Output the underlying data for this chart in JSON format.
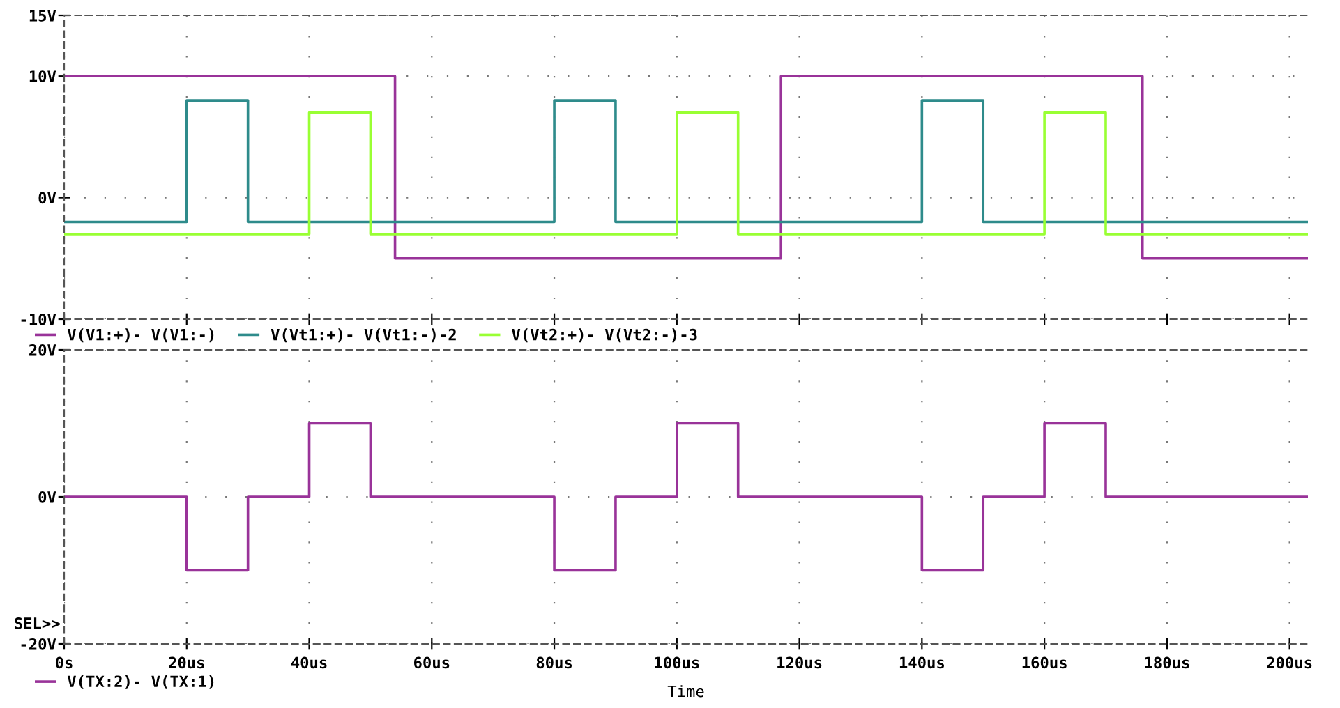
{
  "chart_data": [
    {
      "type": "step",
      "xlim": [
        0,
        203
      ],
      "xticks": [
        0,
        20,
        40,
        60,
        80,
        100,
        120,
        140,
        160,
        180,
        200
      ],
      "ylim": [
        -10,
        15
      ],
      "yticks": [
        {
          "value": -10,
          "label": "-10V"
        },
        {
          "value": 0,
          "label": "0V"
        },
        {
          "value": 10,
          "label": "10V"
        },
        {
          "value": 15,
          "label": "15V"
        }
      ],
      "tick_labels": "y",
      "grid": true,
      "legend": "bottom left",
      "series": [
        {
          "name": "V(V1:+)- V(V1:-)",
          "color": "#993399",
          "x": [
            0,
            54,
            117,
            176,
            203
          ],
          "values": [
            10,
            -5,
            10,
            -5,
            -5
          ]
        },
        {
          "name": "V(Vt1:+)- V(Vt1:-)-2",
          "color": "#2e8b8b",
          "x": [
            0,
            20,
            30,
            80,
            90,
            140,
            150,
            203
          ],
          "values": [
            -2,
            8,
            -2,
            8,
            -2,
            8,
            -2,
            -2
          ]
        },
        {
          "name": "V(Vt2:+)- V(Vt2:-)-3",
          "color": "#99ff33",
          "x": [
            0,
            40,
            50,
            100,
            110,
            160,
            170,
            203
          ],
          "values": [
            -3,
            7,
            -3,
            7,
            -3,
            7,
            -3,
            -3
          ]
        }
      ]
    },
    {
      "type": "step",
      "xlabel": "Time",
      "xlim": [
        0,
        203
      ],
      "xticks": [
        {
          "value": 0,
          "label": "0s"
        },
        {
          "value": 20,
          "label": "20us"
        },
        {
          "value": 40,
          "label": "40us"
        },
        {
          "value": 60,
          "label": "60us"
        },
        {
          "value": 80,
          "label": "80us"
        },
        {
          "value": 100,
          "label": "100us"
        },
        {
          "value": 120,
          "label": "120us"
        },
        {
          "value": 140,
          "label": "140us"
        },
        {
          "value": 160,
          "label": "160us"
        },
        {
          "value": 180,
          "label": "180us"
        },
        {
          "value": 200,
          "label": "200us"
        }
      ],
      "ylim": [
        -20,
        20
      ],
      "yticks": [
        {
          "value": -20,
          "label": "-20V"
        },
        {
          "value": 0,
          "label": "0V"
        },
        {
          "value": 20,
          "label": "20V"
        }
      ],
      "grid": true,
      "legend": "bottom left",
      "annotations": [
        "SEL>>"
      ],
      "series": [
        {
          "name": "V(TX:2)- V(TX:1)",
          "color": "#993399",
          "x": [
            0,
            20,
            30,
            40,
            50,
            80,
            90,
            100,
            110,
            140,
            150,
            160,
            170,
            203
          ],
          "values": [
            0,
            -10,
            0,
            10,
            0,
            -10,
            0,
            10,
            0,
            -10,
            0,
            10,
            0,
            0
          ]
        }
      ]
    }
  ]
}
